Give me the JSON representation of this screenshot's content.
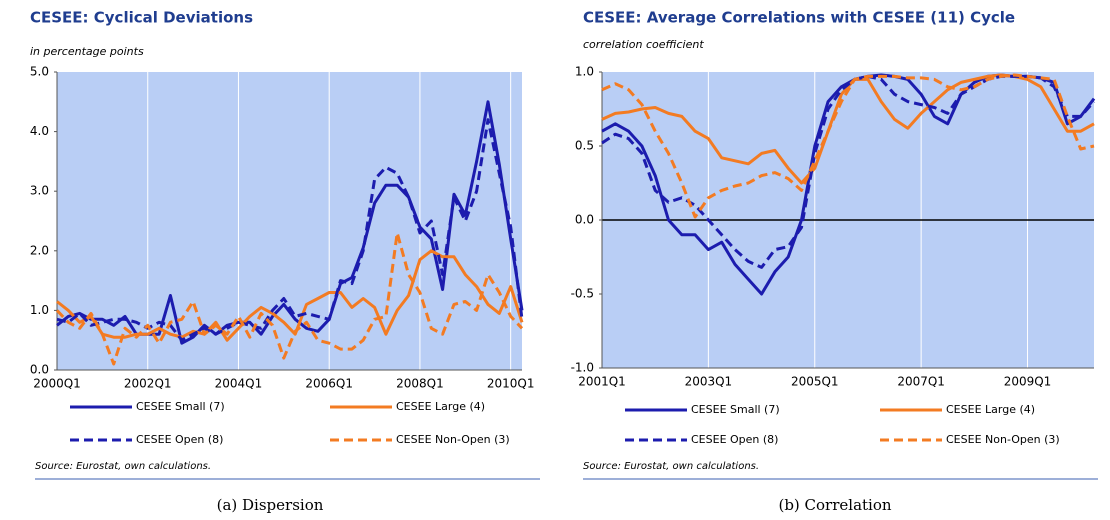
{
  "chart_data": [
    {
      "type": "line",
      "title": "CESEE: Cyclical Deviations",
      "subtitle": "in percentage points",
      "source": "Source: Eurostat, own calculations.",
      "caption": "(a) Dispersion",
      "categories": [
        "2000Q1",
        null,
        null,
        null,
        null,
        null,
        null,
        null,
        "2002Q1",
        null,
        null,
        null,
        null,
        null,
        null,
        null,
        "2004Q1",
        null,
        null,
        null,
        null,
        null,
        null,
        null,
        "2006Q1",
        null,
        null,
        null,
        null,
        null,
        null,
        null,
        "2008Q1",
        null,
        null,
        null,
        null,
        null,
        null,
        null,
        "2010Q1",
        null
      ],
      "ylim": [
        0,
        5
      ],
      "yticks": [
        {
          "value": 0,
          "label": "0.0"
        },
        {
          "value": 1,
          "label": "1.0"
        },
        {
          "value": 2,
          "label": "2.0"
        },
        {
          "value": 3,
          "label": "3.0"
        },
        {
          "value": 4,
          "label": "4.0"
        },
        {
          "value": 5,
          "label": "5.0"
        }
      ],
      "grid": true,
      "zero_line": false,
      "series": [
        {
          "name": "CESEE Small (7)",
          "color": "#1c1cae",
          "dash": false,
          "values": [
            0.75,
            0.9,
            0.95,
            0.85,
            0.85,
            0.75,
            0.9,
            0.6,
            0.6,
            0.6,
            1.25,
            0.45,
            0.55,
            0.75,
            0.6,
            0.75,
            0.8,
            0.8,
            0.6,
            0.9,
            1.1,
            0.85,
            0.7,
            0.65,
            0.85,
            1.45,
            1.55,
            2.05,
            2.8,
            3.1,
            3.1,
            2.9,
            2.4,
            2.2,
            1.35,
            2.95,
            2.6,
            3.5,
            4.5,
            3.45,
            2.2,
            1.0
          ]
        },
        {
          "name": "CESEE Large (4)",
          "color": "#f37b22",
          "dash": false,
          "values": [
            1.15,
            1.0,
            0.8,
            0.9,
            0.6,
            0.55,
            0.55,
            0.6,
            0.6,
            0.7,
            0.6,
            0.55,
            0.65,
            0.6,
            0.8,
            0.5,
            0.7,
            0.9,
            1.05,
            0.95,
            0.8,
            0.6,
            1.1,
            1.2,
            1.3,
            1.3,
            1.05,
            1.2,
            1.05,
            0.6,
            1.0,
            1.25,
            1.85,
            2.0,
            1.9,
            1.9,
            1.6,
            1.4,
            1.1,
            0.95,
            1.4,
            0.8
          ]
        },
        {
          "name": "CESEE Open (8)",
          "color": "#1c1cae",
          "dash": true,
          "values": [
            0.85,
            0.8,
            0.95,
            0.75,
            0.8,
            0.85,
            0.85,
            0.8,
            0.7,
            0.8,
            0.75,
            0.5,
            0.6,
            0.7,
            0.6,
            0.7,
            0.8,
            0.75,
            0.7,
            1.0,
            1.2,
            0.9,
            0.95,
            0.9,
            0.85,
            1.5,
            1.45,
            2.0,
            3.2,
            3.4,
            3.3,
            2.9,
            2.3,
            2.5,
            1.6,
            2.9,
            2.5,
            3.0,
            4.2,
            3.3,
            2.4,
            0.85
          ]
        },
        {
          "name": "CESEE Non-Open (3)",
          "color": "#f37b22",
          "dash": true,
          "values": [
            1.0,
            0.8,
            0.7,
            0.95,
            0.6,
            0.1,
            0.7,
            0.55,
            0.75,
            0.45,
            0.8,
            0.85,
            1.15,
            0.6,
            0.75,
            0.6,
            0.9,
            0.55,
            0.95,
            0.75,
            0.2,
            0.65,
            0.8,
            0.5,
            0.45,
            0.35,
            0.35,
            0.5,
            0.85,
            0.9,
            2.3,
            1.6,
            1.3,
            0.7,
            0.6,
            1.1,
            1.15,
            1.0,
            1.6,
            1.3,
            0.9,
            0.7
          ]
        }
      ]
    },
    {
      "type": "line",
      "title": "CESEE: Average Correlations with CESEE (11) Cycle",
      "subtitle": "correlation coefficient",
      "source": "Source: Eurostat, own calculations.",
      "caption": "(b) Correlation",
      "categories": [
        "2001Q1",
        null,
        null,
        null,
        null,
        null,
        null,
        null,
        "2003Q1",
        null,
        null,
        null,
        null,
        null,
        null,
        null,
        "2005Q1",
        null,
        null,
        null,
        null,
        null,
        null,
        null,
        "2007Q1",
        null,
        null,
        null,
        null,
        null,
        null,
        null,
        "2009Q1",
        null,
        null,
        null,
        null,
        null
      ],
      "ylim": [
        -1,
        1
      ],
      "yticks": [
        {
          "value": -1,
          "label": "-1.0"
        },
        {
          "value": -0.5,
          "label": "-0.5"
        },
        {
          "value": 0,
          "label": "0.0"
        },
        {
          "value": 0.5,
          "label": "0.5"
        },
        {
          "value": 1,
          "label": "1.0"
        }
      ],
      "grid": true,
      "zero_line": true,
      "series": [
        {
          "name": "CESEE Small (7)",
          "color": "#1c1cae",
          "dash": false,
          "values": [
            0.6,
            0.65,
            0.6,
            0.5,
            0.3,
            0.0,
            -0.1,
            -0.1,
            -0.2,
            -0.15,
            -0.3,
            -0.4,
            -0.5,
            -0.35,
            -0.25,
            0.0,
            0.5,
            0.8,
            0.9,
            0.95,
            0.97,
            0.98,
            0.97,
            0.95,
            0.85,
            0.7,
            0.65,
            0.85,
            0.93,
            0.97,
            0.98,
            0.97,
            0.97,
            0.96,
            0.93,
            0.65,
            0.7,
            0.82
          ]
        },
        {
          "name": "CESEE Large (4)",
          "color": "#f37b22",
          "dash": false,
          "values": [
            0.68,
            0.72,
            0.73,
            0.75,
            0.76,
            0.72,
            0.7,
            0.6,
            0.55,
            0.42,
            0.4,
            0.38,
            0.45,
            0.47,
            0.35,
            0.25,
            0.35,
            0.6,
            0.85,
            0.95,
            0.95,
            0.8,
            0.68,
            0.62,
            0.72,
            0.8,
            0.88,
            0.93,
            0.95,
            0.97,
            0.98,
            0.97,
            0.95,
            0.9,
            0.75,
            0.6,
            0.6,
            0.65
          ]
        },
        {
          "name": "CESEE Open (8)",
          "color": "#1c1cae",
          "dash": true,
          "values": [
            0.52,
            0.58,
            0.55,
            0.45,
            0.2,
            0.12,
            0.15,
            0.1,
            0.0,
            -0.1,
            -0.2,
            -0.28,
            -0.32,
            -0.2,
            -0.18,
            -0.05,
            0.45,
            0.75,
            0.88,
            0.95,
            0.97,
            0.95,
            0.85,
            0.8,
            0.78,
            0.76,
            0.72,
            0.85,
            0.9,
            0.95,
            0.97,
            0.97,
            0.97,
            0.96,
            0.9,
            0.7,
            0.7,
            0.8
          ]
        },
        {
          "name": "CESEE Non-Open (3)",
          "color": "#f37b22",
          "dash": true,
          "values": [
            0.88,
            0.92,
            0.88,
            0.78,
            0.6,
            0.45,
            0.25,
            0.02,
            0.15,
            0.2,
            0.23,
            0.25,
            0.3,
            0.32,
            0.28,
            0.2,
            0.4,
            0.6,
            0.8,
            0.95,
            0.97,
            0.97,
            0.97,
            0.96,
            0.96,
            0.95,
            0.9,
            0.88,
            0.9,
            0.95,
            0.97,
            0.98,
            0.97,
            0.96,
            0.95,
            0.7,
            0.48,
            0.5
          ]
        }
      ]
    }
  ]
}
